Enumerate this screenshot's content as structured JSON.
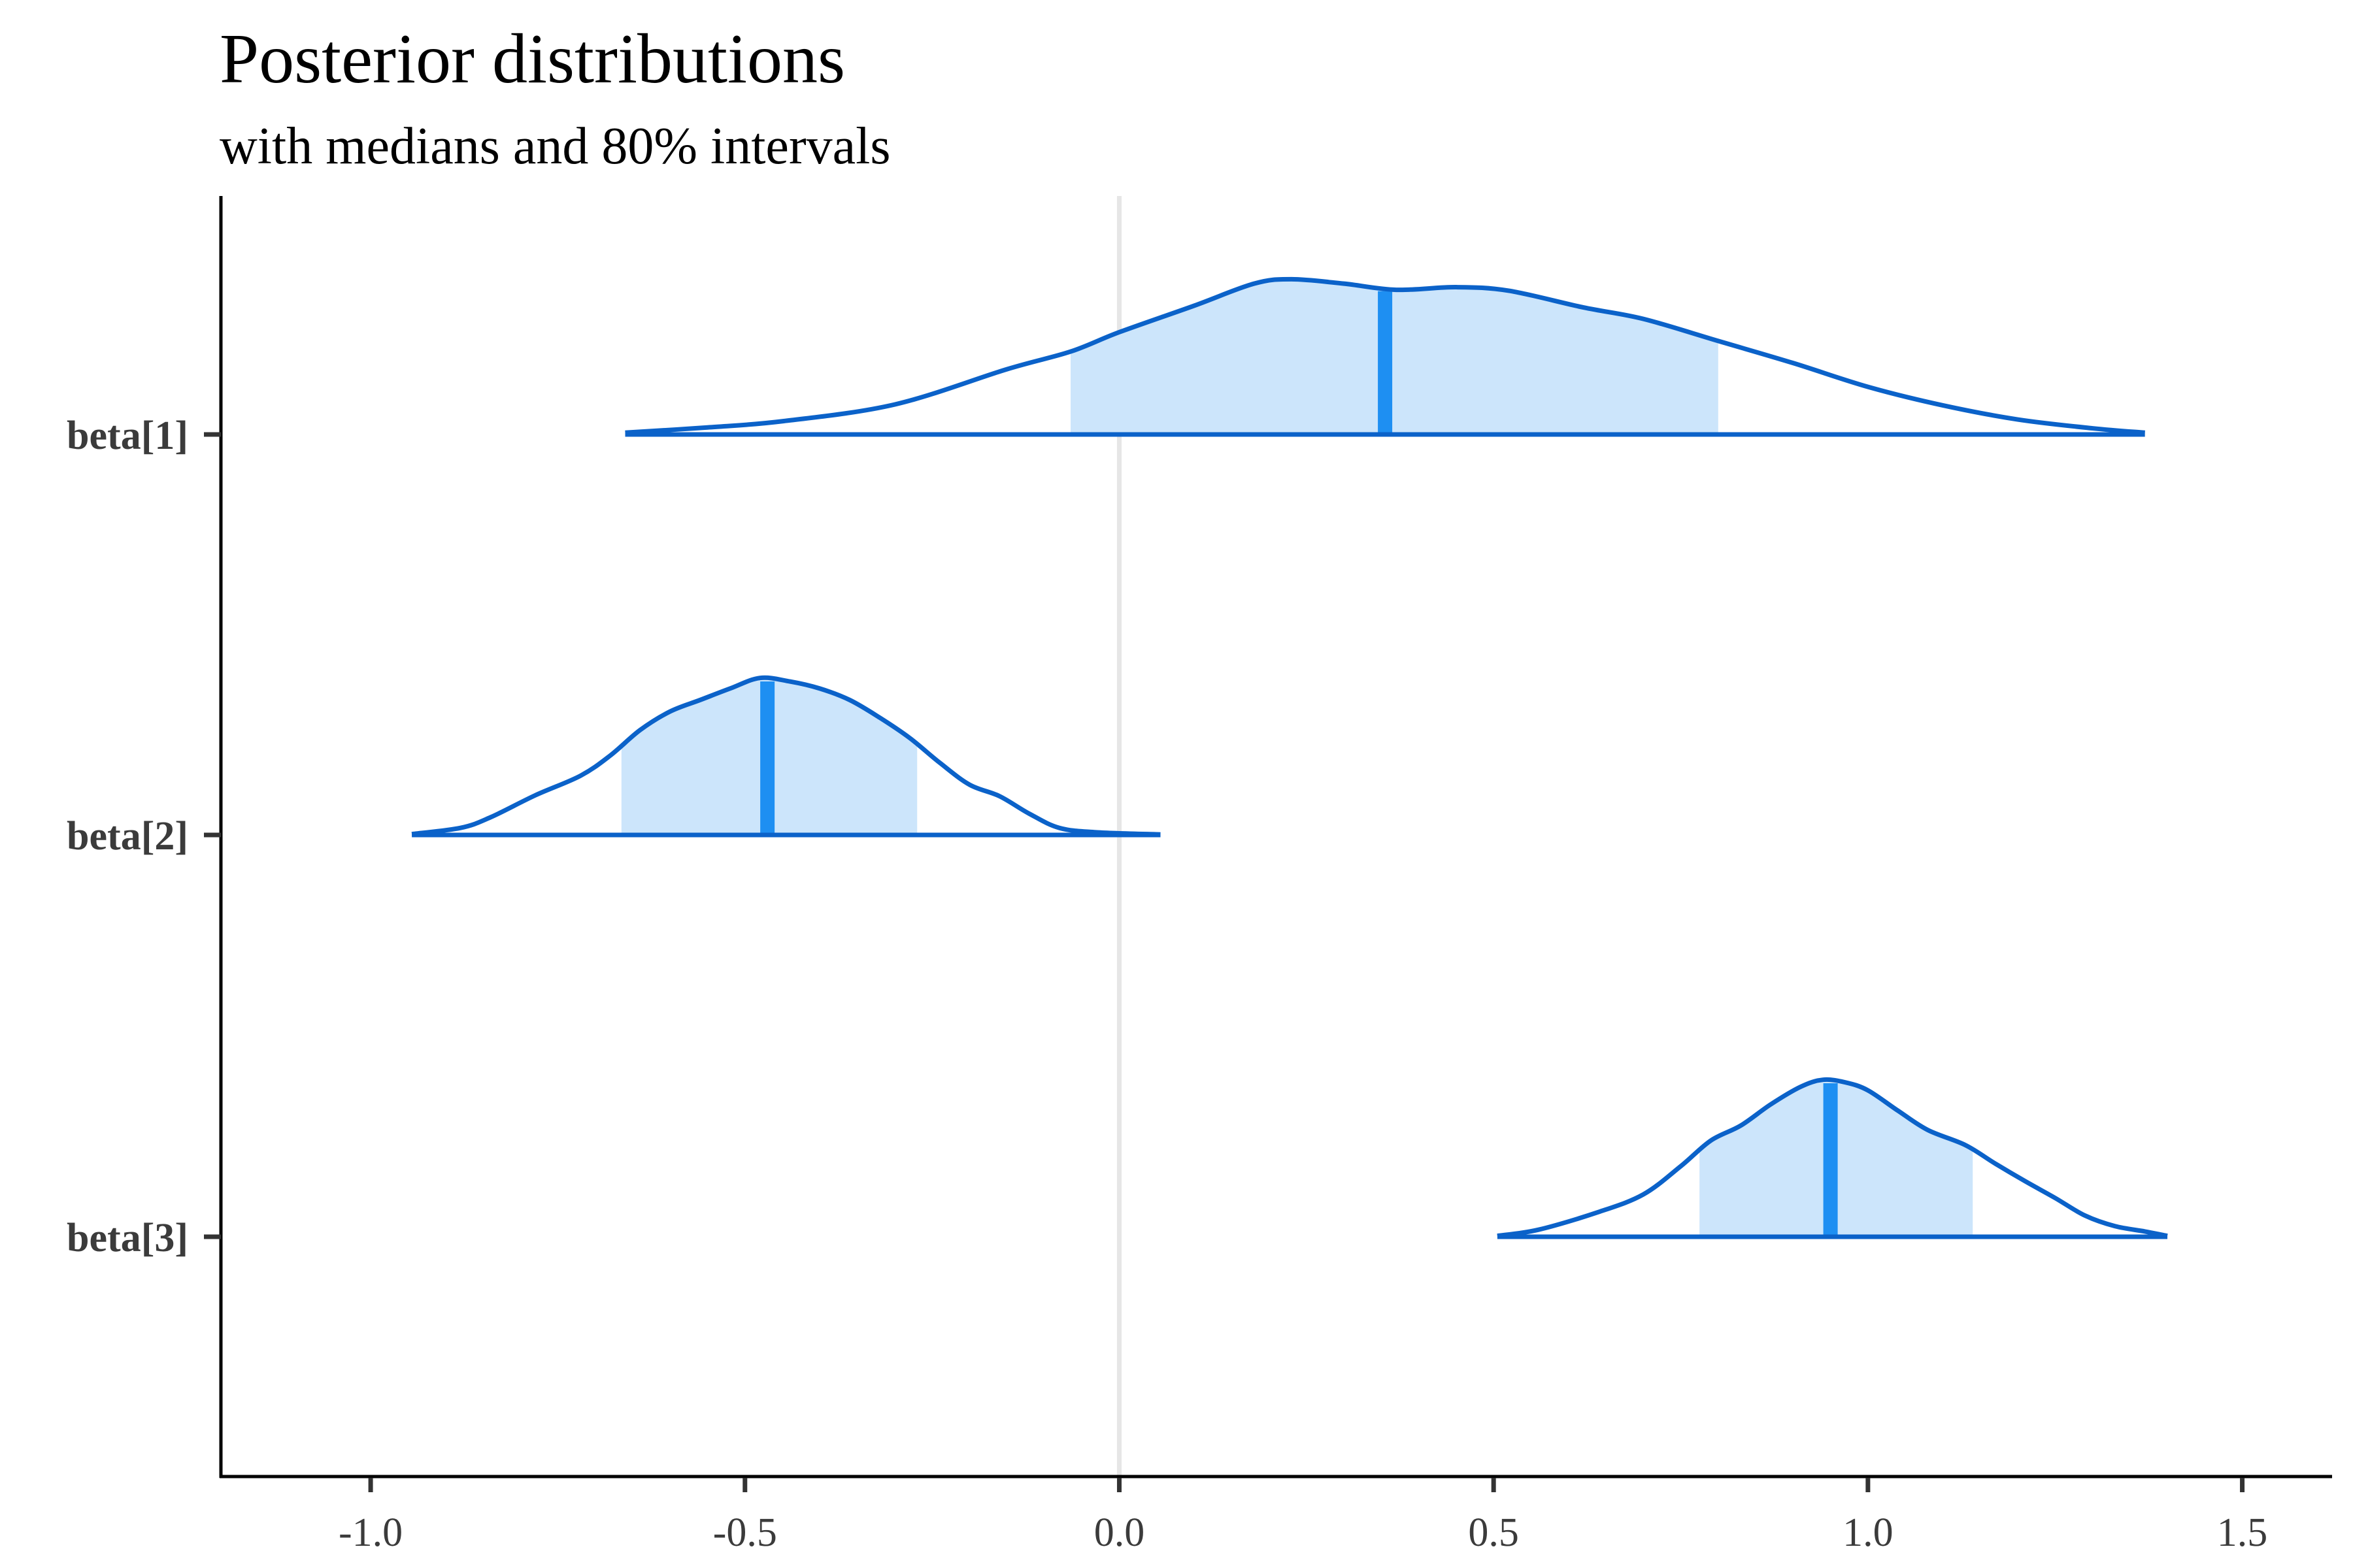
{
  "chart_data": {
    "type": "ridgeline",
    "title": "Posterior distributions",
    "subtitle": "with medians and 80% intervals",
    "xlabel": "",
    "ylabel": "",
    "xlim": [
      -1.2,
      1.62
    ],
    "x_ticks": [
      -1.0,
      -0.5,
      0.0,
      0.5,
      1.0,
      1.5
    ],
    "x_tick_labels": [
      "-1.0",
      "-0.5",
      "0.0",
      "0.5",
      "1.0",
      "1.5"
    ],
    "reference_line_x": 0,
    "grid": false,
    "legend": "none",
    "colors": {
      "interval_fill": "#cce5fb",
      "outline": "#0b62c9",
      "median": "#1e8ff2",
      "zero_line": "#e6e6e6"
    },
    "series": [
      {
        "name": "beta[1]",
        "median": 0.355,
        "interval_80": [
          -0.065,
          0.8
        ],
        "density": [
          [
            -0.66,
            0.01
          ],
          [
            -0.55,
            0.04
          ],
          [
            -0.45,
            0.075
          ],
          [
            -0.3,
            0.17
          ],
          [
            -0.15,
            0.37
          ],
          [
            -0.065,
            0.47
          ],
          [
            0.0,
            0.58
          ],
          [
            0.1,
            0.73
          ],
          [
            0.18,
            0.855
          ],
          [
            0.23,
            0.88
          ],
          [
            0.3,
            0.855
          ],
          [
            0.37,
            0.82
          ],
          [
            0.45,
            0.835
          ],
          [
            0.52,
            0.815
          ],
          [
            0.62,
            0.72
          ],
          [
            0.7,
            0.655
          ],
          [
            0.8,
            0.53
          ],
          [
            0.9,
            0.405
          ],
          [
            1.0,
            0.27
          ],
          [
            1.1,
            0.165
          ],
          [
            1.2,
            0.085
          ],
          [
            1.3,
            0.035
          ],
          [
            1.37,
            0.01
          ]
        ]
      },
      {
        "name": "beta[2]",
        "median": -0.47,
        "interval_80": [
          -0.665,
          -0.27
        ],
        "density": [
          [
            -0.945,
            0.005
          ],
          [
            -0.88,
            0.04
          ],
          [
            -0.84,
            0.1
          ],
          [
            -0.78,
            0.225
          ],
          [
            -0.72,
            0.335
          ],
          [
            -0.68,
            0.45
          ],
          [
            -0.64,
            0.595
          ],
          [
            -0.6,
            0.7
          ],
          [
            -0.56,
            0.765
          ],
          [
            -0.52,
            0.83
          ],
          [
            -0.48,
            0.89
          ],
          [
            -0.44,
            0.87
          ],
          [
            -0.4,
            0.83
          ],
          [
            -0.36,
            0.765
          ],
          [
            -0.32,
            0.665
          ],
          [
            -0.28,
            0.55
          ],
          [
            -0.24,
            0.41
          ],
          [
            -0.2,
            0.285
          ],
          [
            -0.16,
            0.22
          ],
          [
            -0.12,
            0.12
          ],
          [
            -0.08,
            0.04
          ],
          [
            -0.03,
            0.015
          ],
          [
            0.055,
            0.003
          ]
        ]
      },
      {
        "name": "beta[3]",
        "median": 0.95,
        "interval_80": [
          0.775,
          1.14
        ],
        "density": [
          [
            0.505,
            0.005
          ],
          [
            0.56,
            0.04
          ],
          [
            0.64,
            0.14
          ],
          [
            0.7,
            0.24
          ],
          [
            0.75,
            0.4
          ],
          [
            0.79,
            0.545
          ],
          [
            0.83,
            0.63
          ],
          [
            0.87,
            0.75
          ],
          [
            0.91,
            0.85
          ],
          [
            0.94,
            0.89
          ],
          [
            0.97,
            0.875
          ],
          [
            1.0,
            0.83
          ],
          [
            1.04,
            0.715
          ],
          [
            1.08,
            0.605
          ],
          [
            1.13,
            0.52
          ],
          [
            1.17,
            0.415
          ],
          [
            1.21,
            0.315
          ],
          [
            1.25,
            0.22
          ],
          [
            1.29,
            0.12
          ],
          [
            1.33,
            0.06
          ],
          [
            1.37,
            0.03
          ],
          [
            1.4,
            0.005
          ]
        ]
      }
    ]
  }
}
